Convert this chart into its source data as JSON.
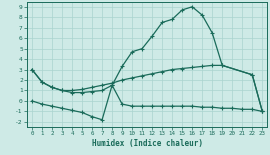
{
  "line1_x": [
    0,
    1,
    2,
    3,
    4,
    5,
    6,
    7,
    8,
    9,
    10,
    11,
    12,
    13,
    14,
    15,
    16,
    17,
    18,
    19,
    22,
    23
  ],
  "line1_y": [
    3.0,
    1.8,
    1.3,
    1.0,
    0.8,
    0.8,
    0.9,
    1.0,
    1.5,
    3.3,
    4.7,
    5.0,
    6.2,
    7.5,
    7.8,
    8.7,
    9.0,
    8.2,
    6.5,
    3.4,
    2.5,
    -1.0
  ],
  "line2_x": [
    0,
    1,
    2,
    3,
    4,
    5,
    6,
    7,
    8,
    9,
    10,
    11,
    12,
    13,
    14,
    15,
    16,
    17,
    18,
    19,
    22,
    23
  ],
  "line2_y": [
    3.0,
    1.8,
    1.3,
    1.0,
    1.0,
    1.1,
    1.3,
    1.5,
    1.7,
    2.0,
    2.2,
    2.4,
    2.6,
    2.8,
    3.0,
    3.1,
    3.2,
    3.3,
    3.4,
    3.4,
    2.5,
    -1.0
  ],
  "line3_x": [
    0,
    1,
    2,
    3,
    4,
    5,
    6,
    7,
    8,
    9,
    10,
    11,
    12,
    13,
    14,
    15,
    16,
    17,
    18,
    19,
    20,
    21,
    22,
    23
  ],
  "line3_y": [
    0.0,
    -0.3,
    -0.5,
    -0.7,
    -0.9,
    -1.1,
    -1.5,
    -1.8,
    1.5,
    -0.3,
    -0.5,
    -0.5,
    -0.5,
    -0.5,
    -0.5,
    -0.5,
    -0.5,
    -0.6,
    -0.6,
    -0.7,
    -0.7,
    -0.8,
    -0.8,
    -1.0
  ],
  "line_color": "#1a6b5a",
  "bg_color": "#ceeae6",
  "grid_color": "#aad4ce",
  "xlabel": "Humidex (Indice chaleur)",
  "xlim": [
    -0.5,
    23.5
  ],
  "ylim": [
    -2.5,
    9.5
  ],
  "yticks": [
    -2,
    -1,
    0,
    1,
    2,
    3,
    4,
    5,
    6,
    7,
    8,
    9
  ],
  "xticks": [
    0,
    1,
    2,
    3,
    4,
    5,
    6,
    7,
    8,
    9,
    10,
    11,
    12,
    13,
    14,
    15,
    16,
    17,
    18,
    19,
    20,
    21,
    22,
    23
  ],
  "marker": "+",
  "markersize": 3,
  "linewidth": 0.9
}
